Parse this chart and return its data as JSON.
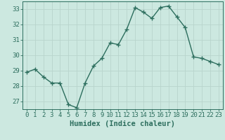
{
  "x": [
    0,
    1,
    2,
    3,
    4,
    5,
    6,
    7,
    8,
    9,
    10,
    11,
    12,
    13,
    14,
    15,
    16,
    17,
    18,
    19,
    20,
    21,
    22,
    23
  ],
  "y": [
    28.9,
    29.1,
    28.6,
    28.2,
    28.2,
    26.8,
    26.6,
    28.2,
    29.3,
    29.8,
    30.8,
    30.7,
    31.7,
    33.1,
    32.8,
    32.4,
    33.1,
    33.2,
    32.5,
    31.8,
    29.9,
    29.8,
    29.6,
    29.4
  ],
  "line_color": "#2d6e5e",
  "marker": "+",
  "marker_size": 4,
  "bg_color": "#cce8e0",
  "grid_color": "#b8d4cc",
  "xlabel": "Humidex (Indice chaleur)",
  "ylim": [
    26.5,
    33.5
  ],
  "xlim": [
    -0.5,
    23.5
  ],
  "yticks": [
    27,
    28,
    29,
    30,
    31,
    32,
    33
  ],
  "xticks": [
    0,
    1,
    2,
    3,
    4,
    5,
    6,
    7,
    8,
    9,
    10,
    11,
    12,
    13,
    14,
    15,
    16,
    17,
    18,
    19,
    20,
    21,
    22,
    23
  ],
  "tick_label_size": 6.5,
  "xlabel_size": 7.5,
  "line_width": 1.0
}
